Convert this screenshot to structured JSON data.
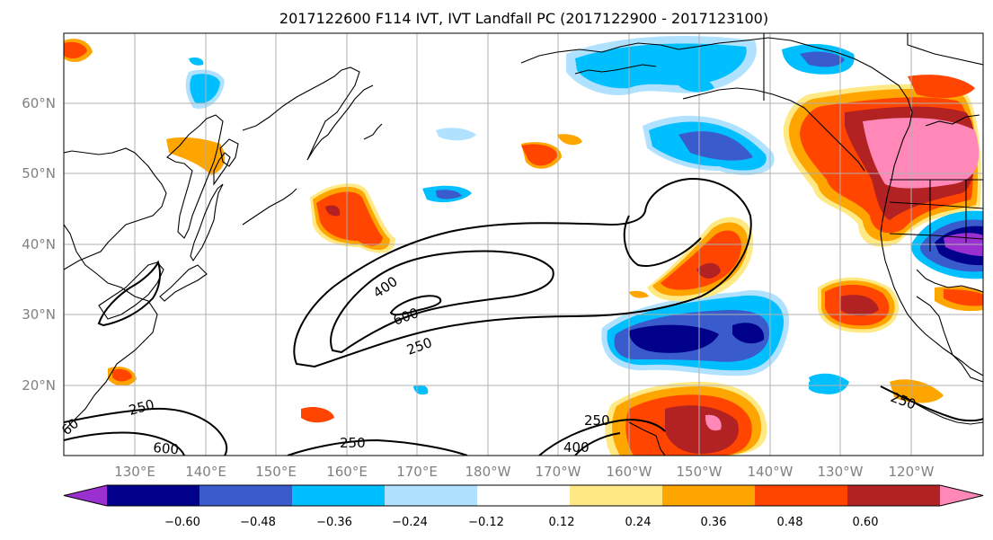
{
  "title": "2017122600 F114 IVT, IVT Landfall PC (2017122900 - 2017123100)",
  "map": {
    "lat_labels": [
      "60°N",
      "50°N",
      "40°N",
      "30°N",
      "20°N"
    ],
    "lon_labels": [
      "130°E",
      "140°E",
      "150°E",
      "160°E",
      "170°E",
      "180°W",
      "170°W",
      "160°W",
      "150°W",
      "140°W",
      "130°W",
      "120°W"
    ],
    "contour_levels": [
      "250",
      "400",
      "600"
    ],
    "contour_labels": [
      "400",
      "600",
      "250",
      "250",
      "600",
      "250",
      "250",
      "400",
      "250",
      "60"
    ]
  },
  "colorbar": {
    "tick_labels": [
      "−0.60",
      "−0.48",
      "−0.36",
      "−0.24",
      "−0.12",
      "0.12",
      "0.24",
      "0.36",
      "0.48",
      "0.60"
    ],
    "colors": [
      "#9b30d0",
      "#00008b",
      "#3a5bcc",
      "#00bfff",
      "#b0e2ff",
      "#ffffff",
      "#ffe985",
      "#ffa500",
      "#ff4500",
      "#b22222",
      "#ff88b8"
    ]
  },
  "colors": {
    "purple": "#9b30d0",
    "navy": "#00008b",
    "royal_blue": "#3a5bcc",
    "deep_sky_blue": "#00bfff",
    "light_sky_blue": "#b0e2ff",
    "khaki": "#ffe985",
    "orange": "#ffa500",
    "orange_red": "#ff4500",
    "firebrick": "#b22222",
    "pink": "#ff88b8"
  }
}
